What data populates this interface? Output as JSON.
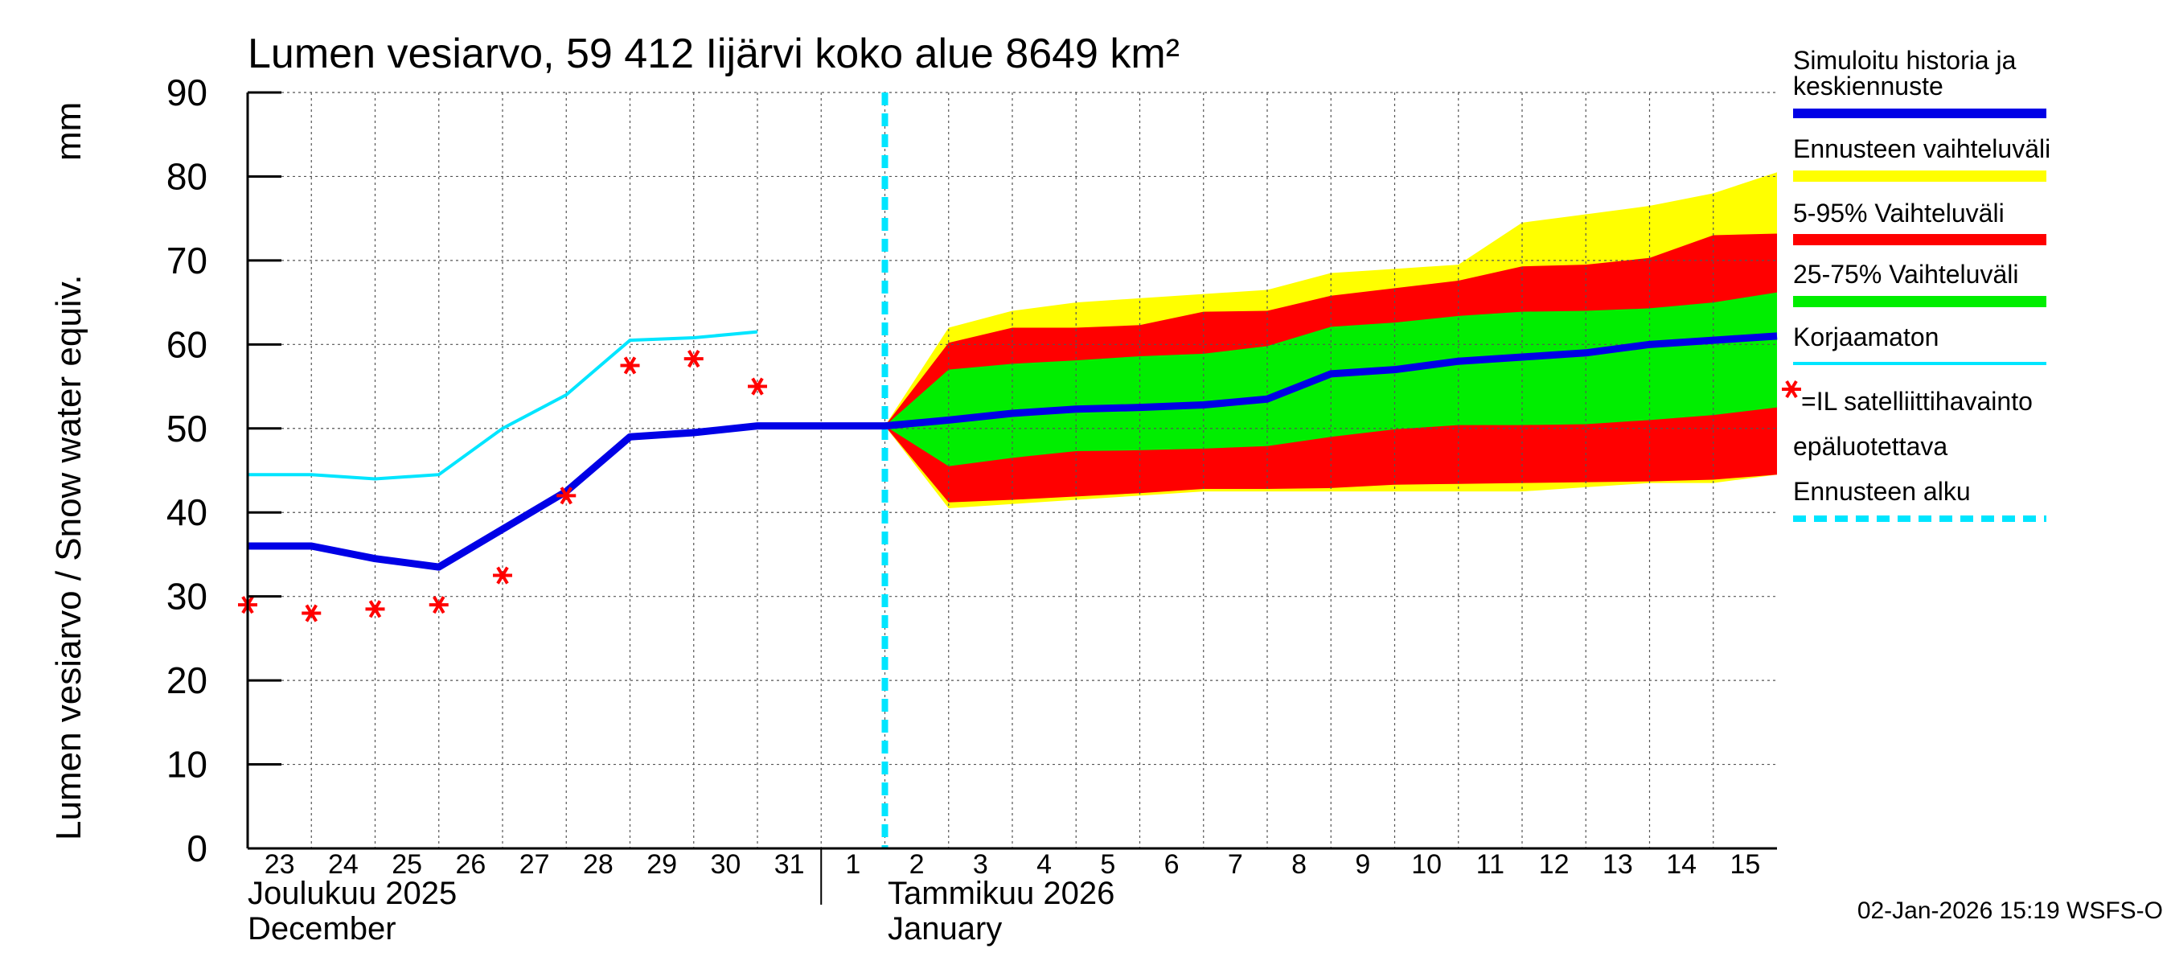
{
  "chart_data": {
    "type": "line",
    "title": "Lumen vesiarvo, 59 412 Iijärvi koko alue 8649 km²",
    "ylabel_left": "Lumen vesiarvo / Snow water equiv.",
    "ylabel_unit": "mm",
    "ylim": [
      0,
      90
    ],
    "yticks": [
      0,
      10,
      20,
      30,
      40,
      50,
      60,
      70,
      80,
      90
    ],
    "x_day_range": [
      0,
      24
    ],
    "x_tick_labels": [
      "23",
      "24",
      "25",
      "26",
      "27",
      "28",
      "29",
      "30",
      "31",
      "1",
      "2",
      "3",
      "4",
      "5",
      "6",
      "7",
      "8",
      "9",
      "10",
      "11",
      "12",
      "13",
      "14",
      "15"
    ],
    "month_labels": [
      {
        "line1": "Joulukuu  2025",
        "line2": "December"
      },
      {
        "line1": "Tammikuu  2026",
        "line2": "January"
      }
    ],
    "forecast_start_day": 10,
    "series": [
      {
        "name": "Simuloitu historia ja keskiennuste",
        "x": [
          0,
          1,
          2,
          3,
          4,
          5,
          6,
          7,
          8,
          9,
          10,
          11,
          12,
          13,
          14,
          15,
          16,
          17,
          18,
          19,
          20,
          21,
          22,
          23,
          24
        ],
        "values": [
          36,
          36,
          34.5,
          33.5,
          38,
          42.5,
          49,
          49.5,
          50.3,
          50.3,
          50.3,
          51,
          51.8,
          52.3,
          52.5,
          52.8,
          53.5,
          56.5,
          57,
          58,
          58.5,
          59,
          60,
          60.5,
          61
        ]
      },
      {
        "name": "Korjaamaton",
        "x": [
          0,
          1,
          2,
          3,
          4,
          5,
          6,
          7,
          8
        ],
        "values": [
          44.5,
          44.5,
          44,
          44.5,
          50,
          54,
          60.5,
          60.8,
          61.5
        ]
      },
      {
        "name": "=IL satelliittihavainto epäluotettava",
        "x": [
          0,
          1,
          2,
          3,
          4,
          5,
          6,
          7,
          8
        ],
        "values": [
          29,
          28,
          28.5,
          29,
          32.5,
          42,
          57.5,
          58.3,
          55
        ]
      }
    ],
    "bands": [
      {
        "name": "Ennusteen vaihteluväli",
        "x": [
          10,
          11,
          12,
          13,
          14,
          15,
          16,
          17,
          18,
          19,
          20,
          21,
          22,
          23,
          24
        ],
        "upper": [
          50.3,
          62,
          64,
          65,
          65.5,
          66,
          66.5,
          68.5,
          69,
          69.5,
          74.5,
          75.5,
          76.5,
          78,
          80.5
        ],
        "lower": [
          50.3,
          40.5,
          41,
          41.5,
          42,
          42.5,
          42.5,
          42.5,
          42.5,
          42.5,
          42.5,
          43,
          43.5,
          43.5,
          44.5
        ]
      },
      {
        "name": "5-95% Vaihteluväli",
        "x": [
          10,
          11,
          12,
          13,
          14,
          15,
          16,
          17,
          18,
          19,
          20,
          21,
          22,
          23,
          24
        ],
        "upper": [
          50.3,
          60.2,
          62,
          62,
          62.3,
          63.9,
          64,
          65.8,
          66.7,
          67.6,
          69.3,
          69.5,
          70.3,
          73,
          73.2
        ],
        "lower": [
          50.3,
          41.2,
          41.5,
          41.9,
          42.3,
          42.8,
          42.8,
          42.9,
          43.3,
          43.4,
          43.5,
          43.6,
          43.7,
          43.9,
          44.5
        ]
      },
      {
        "name": "25-75% Vaihteluväli",
        "x": [
          10,
          11,
          12,
          13,
          14,
          15,
          16,
          17,
          18,
          19,
          20,
          21,
          22,
          23,
          24
        ],
        "upper": [
          50.3,
          57,
          57.7,
          58.1,
          58.6,
          58.9,
          59.8,
          62.1,
          62.6,
          63.4,
          63.9,
          64,
          64.3,
          65,
          66.2
        ],
        "lower": [
          50.3,
          45.5,
          46.5,
          47.3,
          47.4,
          47.6,
          47.9,
          49,
          49.9,
          50.4,
          50.4,
          50.5,
          51,
          51.6,
          52.5
        ]
      }
    ],
    "legend": [
      {
        "label": "Simuloitu historia ja keskiennuste",
        "color": "#0000e6",
        "kind": "line"
      },
      {
        "label": "Ennusteen vaihteluväli",
        "color": "#ffff00",
        "kind": "band"
      },
      {
        "label": "5-95% Vaihteluväli",
        "color": "#ff0000",
        "kind": "band"
      },
      {
        "label": "25-75% Vaihteluväli",
        "color": "#00ee00",
        "kind": "band"
      },
      {
        "label": "Korjaamaton",
        "color": "#00e5ff",
        "kind": "line"
      },
      {
        "label": "=IL satelliittihavainto epäluotettava",
        "color": "#ff0000",
        "kind": "marker"
      },
      {
        "label": "Ennusteen alku",
        "color": "#00e5ff",
        "kind": "dashed"
      }
    ],
    "grid": true
  },
  "footer": "02-Jan-2026 15:19 WSFS-O"
}
